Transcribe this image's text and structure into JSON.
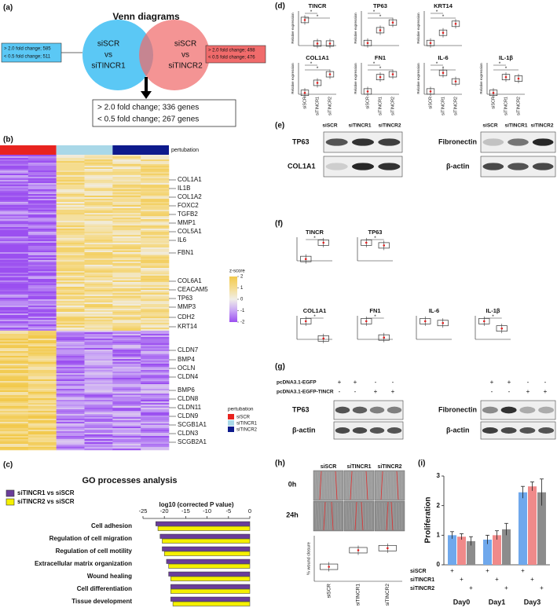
{
  "labels": [
    "(a)",
    "(b)",
    "(c)",
    "(d)",
    "(e)",
    "(f)",
    "(g)",
    "(h)",
    "(i)"
  ],
  "venn": {
    "title": "Venn diagrams",
    "left": [
      "siSCR",
      "vs",
      "siTINCR1"
    ],
    "right": [
      "siSCR",
      "vs",
      "siTINCR2"
    ],
    "left_box": [
      "> 2.0 fold change; 585",
      "< 0.5 fold change; 511"
    ],
    "right_box": [
      "> 2.0 fold change; 498",
      "< 0.5 fold change; 476"
    ],
    "shared_box": [
      "> 2.0 fold change; 336 genes",
      "< 0.5 fold change; 267 genes"
    ]
  },
  "heatmap": {
    "track_label": "pertubation",
    "groups": [
      {
        "name": "siSCR",
        "color": "#e8231f"
      },
      {
        "name": "siTINCR1",
        "color": "#a9d8e8"
      },
      {
        "name": "siTINCR2",
        "color": "#0d1a8c"
      }
    ],
    "genes": [
      "COL1A1",
      "IL1B",
      "COL1A2",
      "FOXC2",
      "TGFB2",
      "MMP1",
      "COL5A1",
      "IL6",
      "FBN1",
      "COL6A1",
      "CEACAM5",
      "TP63",
      "MMP3",
      "CDH2",
      "KRT14",
      "CLDN7",
      "BMP4",
      "OCLN",
      "CLDN4",
      "BMP6",
      "CLDN8",
      "CLDN11",
      "CLDN9",
      "SCGB1A1",
      "CLDN3",
      "SCGB2A1"
    ],
    "scale_title": "z-score",
    "scale_ticks": [
      2,
      1,
      0,
      -1,
      -2
    ]
  },
  "blots_e": {
    "lanes": [
      "siSCR",
      "siTINCR1",
      "siTINCR2"
    ],
    "left": [
      "TP63",
      "COL1A1"
    ],
    "right": [
      "Fibronectin",
      "β-actin"
    ]
  },
  "blots_g": {
    "rows": [
      {
        "name": "pcDNA3.1-EGFP",
        "signs": [
          "+",
          "+",
          "-",
          "-"
        ]
      },
      {
        "name": "pcDNA3.1-EGFP-TINCR",
        "signs": [
          "-",
          "-",
          "+",
          "+"
        ]
      }
    ],
    "left": [
      "TP63",
      "β-actin"
    ],
    "right": [
      "Fibronectin",
      "β-actin"
    ]
  },
  "wound": {
    "times": [
      "0h",
      "24h"
    ],
    "lanes": [
      "siSCR",
      "siTINCR1",
      "siTINCR2"
    ]
  },
  "chart_data": [
    {
      "type": "hbar",
      "title": "GO processes analysis",
      "xlabel": "log10 (corrected P value)",
      "categories": [
        "Cell adhesion",
        "Regulation of cell migration",
        "Regulation of cell motility",
        "Extracellular matrix organization",
        "Wound healing",
        "Cell differentiation",
        "Tissue development"
      ],
      "series": [
        {
          "name": "siTINCR1 vs siSCR",
          "color": "#6a3d9a",
          "values": [
            -22,
            -21,
            -20.5,
            -19.5,
            -19,
            -18.5,
            -18.5
          ]
        },
        {
          "name": "siTINCR2 vs siSCR",
          "color": "#f5f000",
          "values": [
            -21.5,
            -20.5,
            -20,
            -19,
            -18.5,
            -18.5,
            -18
          ]
        }
      ],
      "xlim": [
        -25,
        0
      ],
      "xticks": [
        -25,
        -20,
        -15,
        -10,
        -5,
        0
      ]
    },
    {
      "type": "bar",
      "ylabel": "Proliferation",
      "categories": [
        "Day0",
        "Day1",
        "Day3"
      ],
      "series": [
        {
          "name": "siSCR",
          "color": "#6fa8ec",
          "values": [
            1.0,
            0.85,
            2.45
          ],
          "errors": [
            0.12,
            0.15,
            0.2
          ]
        },
        {
          "name": "siTINCR1",
          "color": "#f08a8a",
          "values": [
            0.95,
            1.0,
            2.65
          ],
          "errors": [
            0.1,
            0.15,
            0.15
          ]
        },
        {
          "name": "siTINCR2",
          "color": "#8c8c8c",
          "values": [
            0.8,
            1.2,
            2.45
          ],
          "errors": [
            0.15,
            0.2,
            0.45
          ]
        }
      ],
      "ylim": [
        0,
        3
      ],
      "yticks": [
        0,
        1,
        2,
        3
      ],
      "sign": "+"
    },
    {
      "type": "box",
      "ylabel": "% wound closure",
      "categories": [
        "siSCR",
        "siTINCR1",
        "siTINCR2"
      ],
      "values": [
        0.35,
        0.75,
        0.8
      ],
      "ylim": [
        0,
        1.1
      ]
    },
    {
      "type": "box",
      "title": "TINCR",
      "ylabel": "Relative expression",
      "values": [
        1.0,
        0.08,
        0.08
      ],
      "ylim": [
        0,
        1.35
      ],
      "annotation": "*"
    },
    {
      "type": "box",
      "title": "TP63",
      "ylabel": "Relative expression",
      "values": [
        0.1,
        0.6,
        0.9
      ],
      "ylim": [
        0,
        1.35
      ],
      "annotation": "*"
    },
    {
      "type": "box",
      "title": "KRT14",
      "ylabel": "Relative expression",
      "values": [
        0.1,
        0.5,
        0.85
      ],
      "ylim": [
        0,
        1.35
      ],
      "annotation": "*"
    },
    {
      "type": "box",
      "title": "COL1A1",
      "ylabel": "Relative expression",
      "categories": [
        "siSCR",
        "siTINCR1",
        "siTINCR2"
      ],
      "values": [
        0.05,
        0.4,
        0.7
      ],
      "ylim": [
        0,
        1.1
      ],
      "annotation": "*"
    },
    {
      "type": "box",
      "title": "FN1",
      "ylabel": "Relative expression",
      "categories": [
        "siSCR",
        "siTINCR1",
        "siTINCR2"
      ],
      "values": [
        0.1,
        0.6,
        0.7
      ],
      "ylim": [
        0,
        1.1
      ],
      "annotation": "*"
    },
    {
      "type": "box",
      "title": "IL-6",
      "ylabel": "Relative expression",
      "categories": [
        "siSCR",
        "siTINCR1",
        "siTINCR2"
      ],
      "values": [
        0.1,
        0.75,
        0.45
      ],
      "ylim": [
        0,
        1.1
      ],
      "annotation": "*"
    },
    {
      "type": "box",
      "title": "IL-1β",
      "ylabel": "Relative expression",
      "categories": [
        "siSCR",
        "siTINCR1",
        "siTINCR2"
      ],
      "values": [
        0.05,
        0.6,
        0.55
      ],
      "ylim": [
        0,
        1.1
      ],
      "annotation": "*"
    },
    {
      "type": "box",
      "title": "TINCR",
      "values": [
        0.1,
        1.0
      ],
      "ylim": [
        0,
        1.3
      ],
      "annotation": "*"
    },
    {
      "type": "box",
      "title": "TP63",
      "values": [
        1.0,
        0.85
      ],
      "ylim": [
        0,
        1.3
      ],
      "annotation": "*"
    },
    {
      "type": "box",
      "title": "COL1A1",
      "values": [
        1.0,
        0.05
      ],
      "ylim": [
        0,
        1.3
      ],
      "annotation": "*"
    },
    {
      "type": "box",
      "title": "FN1",
      "values": [
        1.0,
        0.1
      ],
      "ylim": [
        0,
        1.3
      ],
      "annotation": "*"
    },
    {
      "type": "box",
      "title": "IL-6",
      "values": [
        1.0,
        0.9
      ],
      "ylim": [
        0,
        1.3
      ]
    },
    {
      "type": "box",
      "title": "IL-1β",
      "values": [
        1.0,
        0.6
      ],
      "ylim": [
        0,
        1.3
      ],
      "annotation": "*"
    }
  ]
}
